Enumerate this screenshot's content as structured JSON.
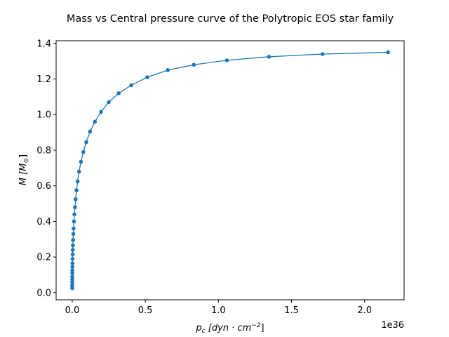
{
  "chart_data": {
    "type": "line",
    "title": "Mass vs Central pressure curve of the Polytropic EOS star family",
    "xlabel_base": "p",
    "xlabel_sub": "c",
    "xlabel_unit": "[dyn · cm",
    "xlabel_exp": "−2",
    "xlabel_close": "]",
    "ylabel_base": "M",
    "ylabel_unit_open": "[M",
    "ylabel_unit_sub": "⊙",
    "ylabel_unit_close": "]",
    "x_offset_text": "1e36",
    "xlim": [
      -0.11,
      2.27
    ],
    "ylim": [
      -0.04,
      1.415
    ],
    "x_ticks": [
      {
        "value": 0.0,
        "label": "0.0"
      },
      {
        "value": 0.5,
        "label": "0.5"
      },
      {
        "value": 1.0,
        "label": "1.0"
      },
      {
        "value": 1.5,
        "label": "1.5"
      },
      {
        "value": 2.0,
        "label": "2.0"
      }
    ],
    "y_ticks": [
      {
        "value": 0.0,
        "label": "0.0"
      },
      {
        "value": 0.2,
        "label": "0.2"
      },
      {
        "value": 0.4,
        "label": "0.4"
      },
      {
        "value": 0.6,
        "label": "0.6"
      },
      {
        "value": 0.8,
        "label": "0.8"
      },
      {
        "value": 1.0,
        "label": "1.0"
      },
      {
        "value": 1.2,
        "label": "1.2"
      },
      {
        "value": 1.4,
        "label": "1.4"
      }
    ],
    "grid": false,
    "color": "#1f77b4",
    "series": [
      {
        "x": [
          0.0002,
          0.0003,
          0.0004,
          0.0005,
          0.0006,
          0.0008,
          0.001,
          0.0012,
          0.0015,
          0.0019,
          0.0024,
          0.003,
          0.0038,
          0.0047,
          0.0059,
          0.0075,
          0.0094,
          0.0118,
          0.0148,
          0.0186,
          0.0234,
          0.0294,
          0.037,
          0.047,
          0.06,
          0.076,
          0.096,
          0.122,
          0.155,
          0.197,
          0.25,
          0.318,
          0.404,
          0.514,
          0.654,
          0.832,
          1.058,
          1.346,
          1.712,
          2.16
        ],
        "y": [
          0.025,
          0.035,
          0.045,
          0.06,
          0.075,
          0.09,
          0.11,
          0.125,
          0.145,
          0.165,
          0.19,
          0.215,
          0.24,
          0.265,
          0.295,
          0.33,
          0.36,
          0.4,
          0.44,
          0.48,
          0.525,
          0.575,
          0.625,
          0.68,
          0.735,
          0.79,
          0.845,
          0.905,
          0.96,
          1.015,
          1.07,
          1.12,
          1.165,
          1.21,
          1.25,
          1.28,
          1.305,
          1.325,
          1.34,
          1.35
        ]
      }
    ]
  }
}
